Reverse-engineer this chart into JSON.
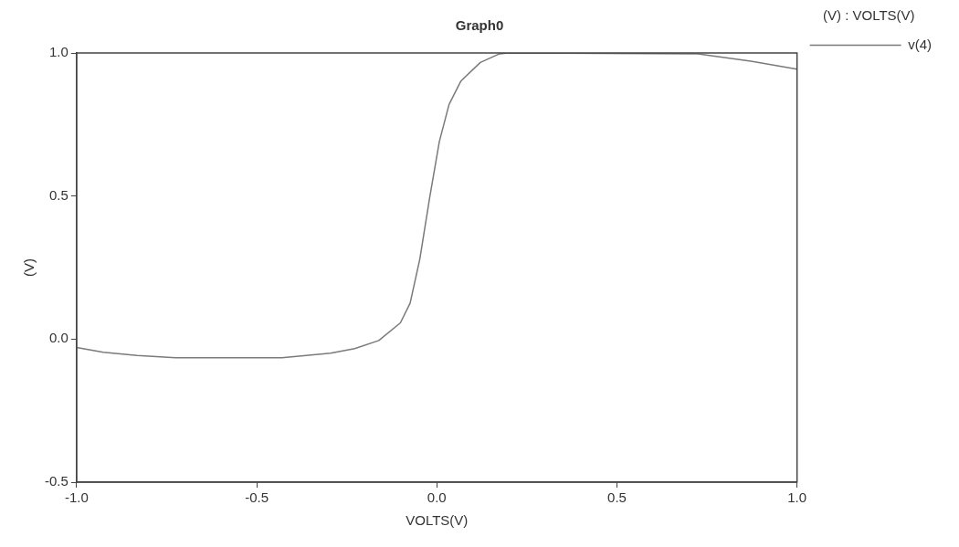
{
  "chart_data": {
    "type": "line",
    "title": "Graph0",
    "xlabel": "VOLTS(V)",
    "ylabel": "(V)",
    "legend_title": "(V) : VOLTS(V)",
    "legend": "top right",
    "grid": false,
    "marker": "none",
    "line_style": "solid",
    "xlim": [
      -1.0,
      1.0
    ],
    "xticks": [
      {
        "value": -1,
        "label": "-1.0"
      },
      {
        "value": -0.5,
        "label": "-0.5"
      },
      {
        "value": 0,
        "label": "0.0"
      },
      {
        "value": 0.5,
        "label": "0.5"
      },
      {
        "value": 1,
        "label": "1.0"
      }
    ],
    "ylim": [
      -0.5,
      1.0
    ],
    "yticks": [
      {
        "value": -0.5,
        "label": "-0.5"
      },
      {
        "value": 0,
        "label": "0.0"
      },
      {
        "value": 0.5,
        "label": "0.5"
      },
      {
        "value": 1,
        "label": "1.0"
      }
    ],
    "series": [
      {
        "name": "v(4)",
        "color": "#7a7a7a",
        "x": [
          -1.0,
          -0.926,
          -0.832,
          -0.725,
          -0.43,
          -0.295,
          -0.228,
          -0.161,
          -0.101,
          -0.074,
          -0.047,
          -0.02,
          0.007,
          0.034,
          0.067,
          0.121,
          0.174,
          0.2,
          0.725,
          0.872,
          1.0
        ],
        "values": [
          -0.029,
          -0.046,
          -0.057,
          -0.065,
          -0.065,
          -0.049,
          -0.033,
          -0.005,
          0.057,
          0.126,
          0.281,
          0.493,
          0.69,
          0.82,
          0.902,
          0.967,
          0.997,
          1.0,
          0.997,
          0.971,
          0.943
        ]
      }
    ]
  }
}
